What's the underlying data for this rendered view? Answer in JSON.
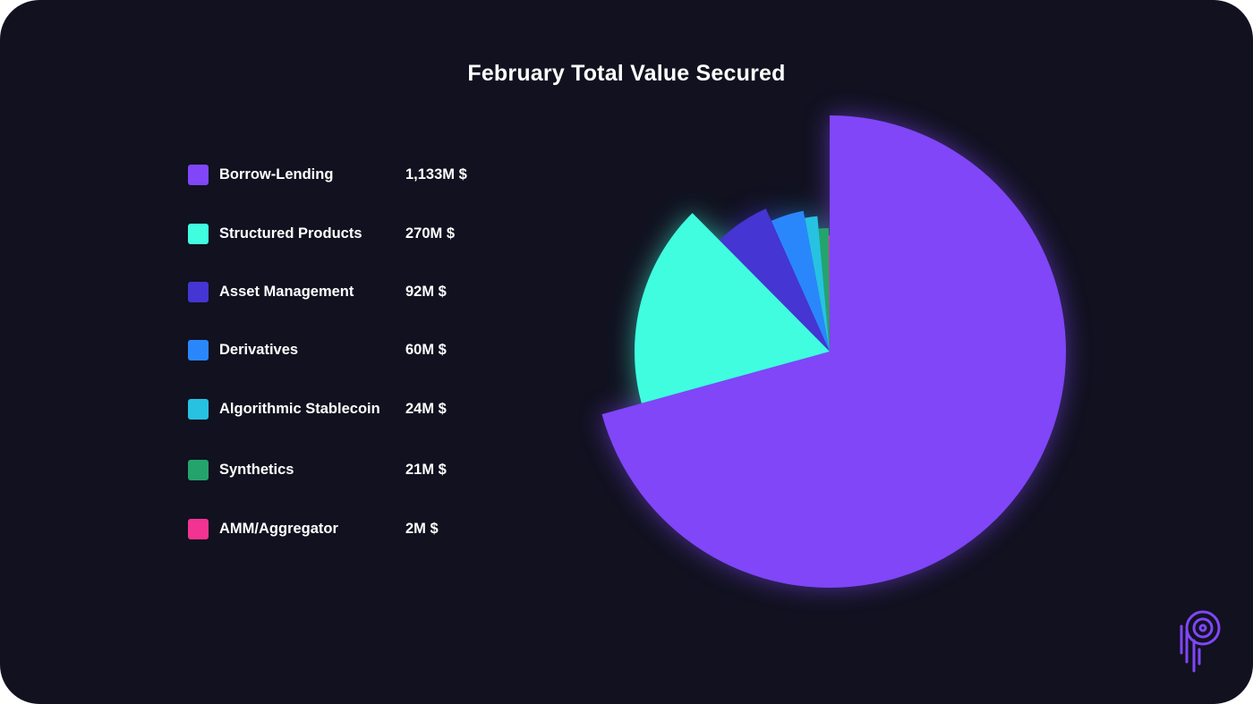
{
  "chart_data": {
    "type": "pie",
    "title": "February Total Value Secured",
    "legend_position": "left",
    "slices": [
      {
        "name": "Borrow-Lending",
        "label": "1,133M $",
        "value": 1133,
        "color": "#8046f8"
      },
      {
        "name": "Structured Products",
        "label": "270M $",
        "value": 270,
        "color": "#40fde0"
      },
      {
        "name": "Asset Management",
        "label": "92M $",
        "value": 92,
        "color": "#4535d3"
      },
      {
        "name": "Derivatives",
        "label": "60M $",
        "value": 60,
        "color": "#2a87fb"
      },
      {
        "name": "Algorithmic Stablecoin",
        "label": "24M $",
        "value": 24,
        "color": "#27c2e2"
      },
      {
        "name": "Synthetics",
        "label": "21M $",
        "value": 21,
        "color": "#24a46c"
      },
      {
        "name": "AMM/Aggregator",
        "label": "2M $",
        "value": 2,
        "color": "#f23392"
      }
    ]
  },
  "colors": {
    "background": "#11111f",
    "text": "#ffffff",
    "logo": "#8046f8"
  },
  "logo": {
    "icon": "brand-p-logo-icon"
  }
}
